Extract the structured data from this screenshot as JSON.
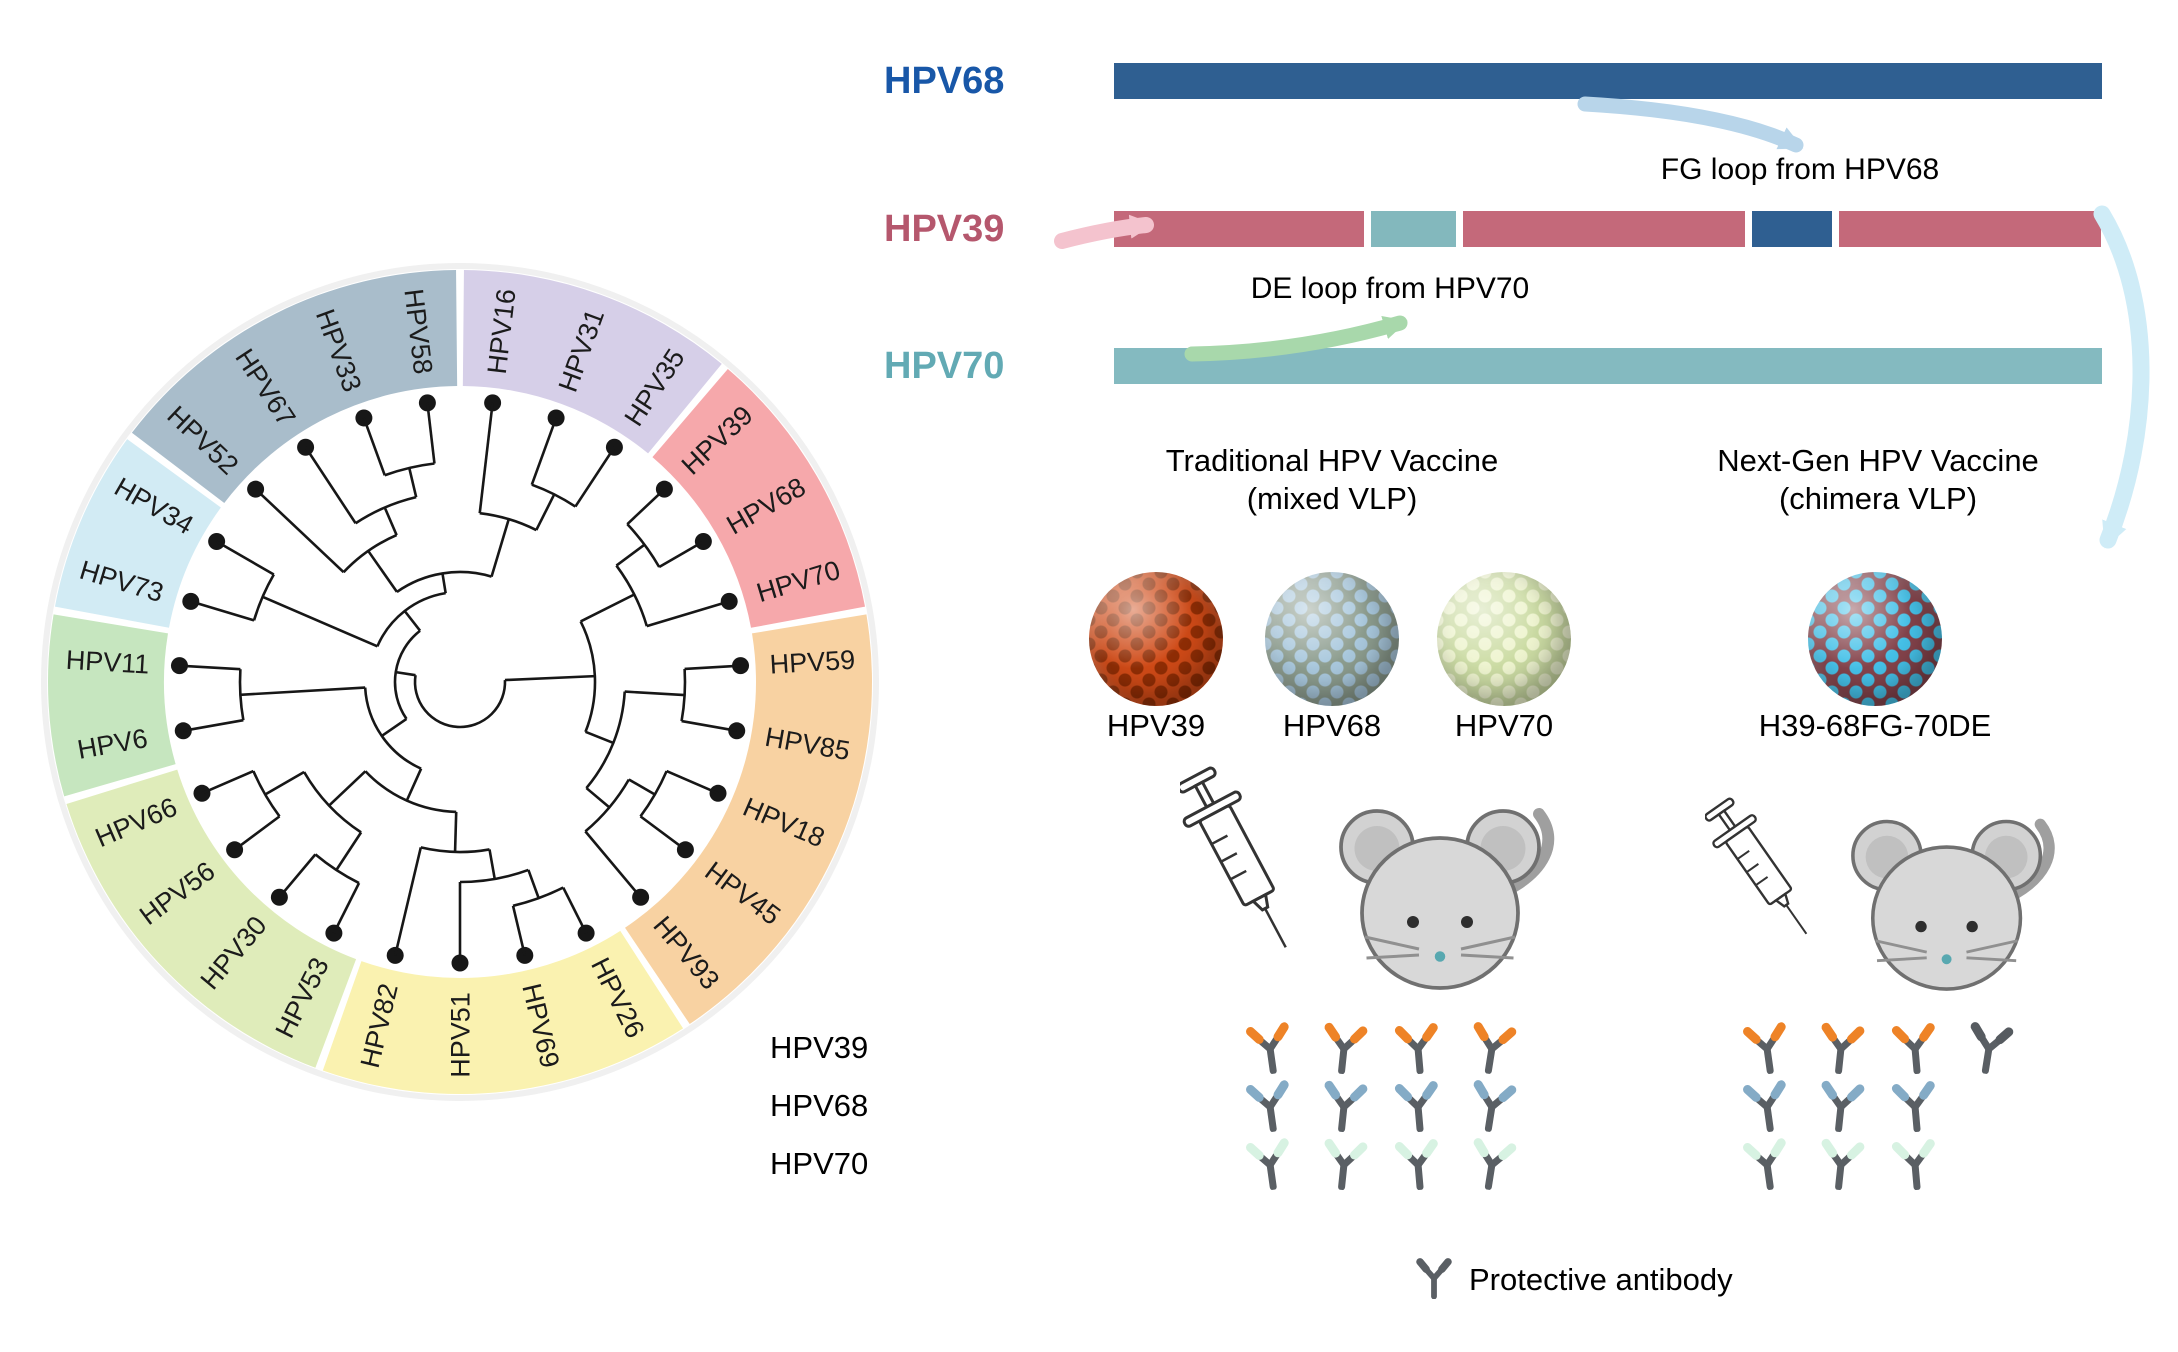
{
  "construct": {
    "rows": [
      {
        "name": "HPV68",
        "label_color": "#1857a8",
        "segments": [
          {
            "color": "#2f5f91",
            "w": 1
          }
        ]
      },
      {
        "name": "HPV39",
        "label_color": "#b5576d",
        "segments": [
          {
            "color": "#c4697a",
            "w": 0.26
          },
          {
            "color": "#83b8bd",
            "w": 0.089
          },
          {
            "color": "#c4697a",
            "w": 0.294
          },
          {
            "color": "#2f5f91",
            "w": 0.083
          },
          {
            "color": "#c4697a",
            "w": 0.273
          }
        ]
      },
      {
        "name": "HPV70",
        "label_color": "#62aab4",
        "segments": [
          {
            "color": "#84bac0",
            "w": 1
          }
        ]
      }
    ],
    "fg_label": "FG loop from HPV68",
    "de_label": "DE loop from HPV70",
    "arrow_colors": {
      "pink": "#f4c3ce",
      "blue": "#b8d5ea",
      "green": "#a8d8ab",
      "cyan": "#cfecf7"
    }
  },
  "vaccines": {
    "traditional": {
      "title": "Traditional HPV Vaccine",
      "subtitle": "(mixed VLP)",
      "vlps": [
        {
          "label": "HPV39",
          "base": "#cf4a17",
          "dot": "#8f2d05"
        },
        {
          "label": "HPV68",
          "base": "#8d9d8f",
          "dot": "#a9c8dd"
        },
        {
          "label": "HPV70",
          "base": "#ccdca4",
          "dot": "#eef4cf"
        }
      ]
    },
    "nextgen": {
      "title": "Next-Gen HPV Vaccine",
      "subtitle": "(chimera VLP)",
      "vlps": [
        {
          "label": "H39-68FG-70DE",
          "base": "#84434b",
          "dot": "#45c1e8"
        }
      ]
    }
  },
  "antibodies": {
    "rows": [
      {
        "label": "HPV39",
        "left": [
          "#ee8327",
          "#ee8327",
          "#ee8327",
          "#ee8327"
        ],
        "right": [
          "#ee8327",
          "#ee8327",
          "#ee8327",
          "#565b60"
        ]
      },
      {
        "label": "HPV68",
        "left": [
          "#84abc6",
          "#84abc6",
          "#84abc6",
          "#84abc6"
        ],
        "right": [
          "#84abc6",
          "#84abc6",
          "#84abc6"
        ]
      },
      {
        "label": "HPV70",
        "left": [
          "#d7f2e2",
          "#d7f2e2",
          "#d7f2e2",
          "#d7f2e2"
        ],
        "right": [
          "#d7f2e2",
          "#d7f2e2",
          "#d7f2e2"
        ]
      }
    ],
    "legend": "Protective antibody",
    "stem_color": "#5a5f64"
  },
  "icons": {
    "syringe": "syringe-icon",
    "mouse": "mouse-icon",
    "antibody": "antibody-y-icon",
    "vlp": "virus-like-particle-icon"
  },
  "phylo": {
    "start_angle": 40,
    "line_color": "#171717",
    "groups": [
      {
        "name": "group-pink",
        "color": "#f6a8ab",
        "labels": [
          "HPV39",
          "HPV68",
          "HPV70"
        ]
      },
      {
        "name": "group-orange",
        "color": "#f8d2a2",
        "labels": [
          "HPV59",
          "HPV85",
          "HPV18",
          "HPV45",
          "HPV93"
        ]
      },
      {
        "name": "group-yellow",
        "color": "#faf2b0",
        "labels": [
          "HPV26",
          "HPV69",
          "HPV51",
          "HPV82"
        ]
      },
      {
        "name": "group-lightgreen",
        "color": "#dfecba",
        "labels": [
          "HPV53",
          "HPV30",
          "HPV56",
          "HPV66"
        ]
      },
      {
        "name": "group-green",
        "color": "#c6e6bf",
        "labels": [
          "HPV6",
          "HPV11"
        ]
      },
      {
        "name": "group-cyan",
        "color": "#d2ebf4",
        "labels": [
          "HPV73",
          "HPV34"
        ]
      },
      {
        "name": "group-grayblue",
        "color": "#a9bdcb",
        "labels": [
          "HPV52",
          "HPV67",
          "HPV33",
          "HPV58"
        ]
      },
      {
        "name": "group-lavender",
        "color": "#d6cfe8",
        "labels": [
          "HPV16",
          "HPV31",
          "HPV35"
        ]
      }
    ],
    "topology": {
      "r": 45,
      "children": [
        {
          "r": 135,
          "children": [
            {
              "r": 195,
              "children": [
                {
                  "r": 230,
                  "children": [
                    {
                      "leaf": "HPV39"
                    },
                    {
                      "leaf": "HPV68"
                    }
                  ]
                },
                {
                  "leaf": "HPV70"
                }
              ]
            },
            {
              "r": 165,
              "children": [
                {
                  "r": 225,
                  "children": [
                    {
                      "leaf": "HPV59"
                    },
                    {
                      "leaf": "HPV85"
                    }
                  ]
                },
                {
                  "r": 195,
                  "children": [
                    {
                      "r": 225,
                      "children": [
                        {
                          "leaf": "HPV18"
                        },
                        {
                          "leaf": "HPV45"
                        }
                      ]
                    },
                    {
                      "leaf": "HPV93"
                    }
                  ]
                }
              ]
            }
          ]
        },
        {
          "r": 65,
          "children": [
            {
              "r": 95,
              "children": [
                {
                  "r": 130,
                  "children": [
                    {
                      "r": 170,
                      "children": [
                        {
                          "r": 200,
                          "children": [
                            {
                              "r": 230,
                              "children": [
                                {
                                  "leaf": "HPV26"
                                },
                                {
                                  "leaf": "HPV69"
                                }
                              ]
                            },
                            {
                              "leaf": "HPV51"
                            }
                          ]
                        },
                        {
                          "leaf": "HPV82"
                        }
                      ]
                    },
                    {
                      "r": 180,
                      "children": [
                        {
                          "r": 225,
                          "children": [
                            {
                              "leaf": "HPV53"
                            },
                            {
                              "leaf": "HPV30"
                            }
                          ]
                        },
                        {
                          "r": 225,
                          "children": [
                            {
                              "leaf": "HPV56"
                            },
                            {
                              "leaf": "HPV66"
                            }
                          ]
                        }
                      ]
                    }
                  ]
                },
                {
                  "r": 220,
                  "children": [
                    {
                      "leaf": "HPV6"
                    },
                    {
                      "leaf": "HPV11"
                    }
                  ]
                }
              ]
            },
            {
              "r": 90,
              "children": [
                {
                  "r": 215,
                  "children": [
                    {
                      "leaf": "HPV73"
                    },
                    {
                      "leaf": "HPV34"
                    }
                  ]
                },
                {
                  "r": 110,
                  "children": [
                    {
                      "r": 160,
                      "children": [
                        {
                          "r": 190,
                          "children": [
                            {
                              "r": 220,
                              "children": [
                                {
                                  "leaf": "HPV33"
                                },
                                {
                                  "leaf": "HPV58"
                                }
                              ]
                            },
                            {
                              "leaf": "HPV67"
                            }
                          ]
                        },
                        {
                          "leaf": "HPV52"
                        }
                      ]
                    },
                    {
                      "r": 170,
                      "children": [
                        {
                          "leaf": "HPV16"
                        },
                        {
                          "r": 210,
                          "children": [
                            {
                              "leaf": "HPV31"
                            },
                            {
                              "leaf": "HPV35"
                            }
                          ]
                        }
                      ]
                    }
                  ]
                }
              ]
            }
          ]
        }
      ]
    }
  }
}
